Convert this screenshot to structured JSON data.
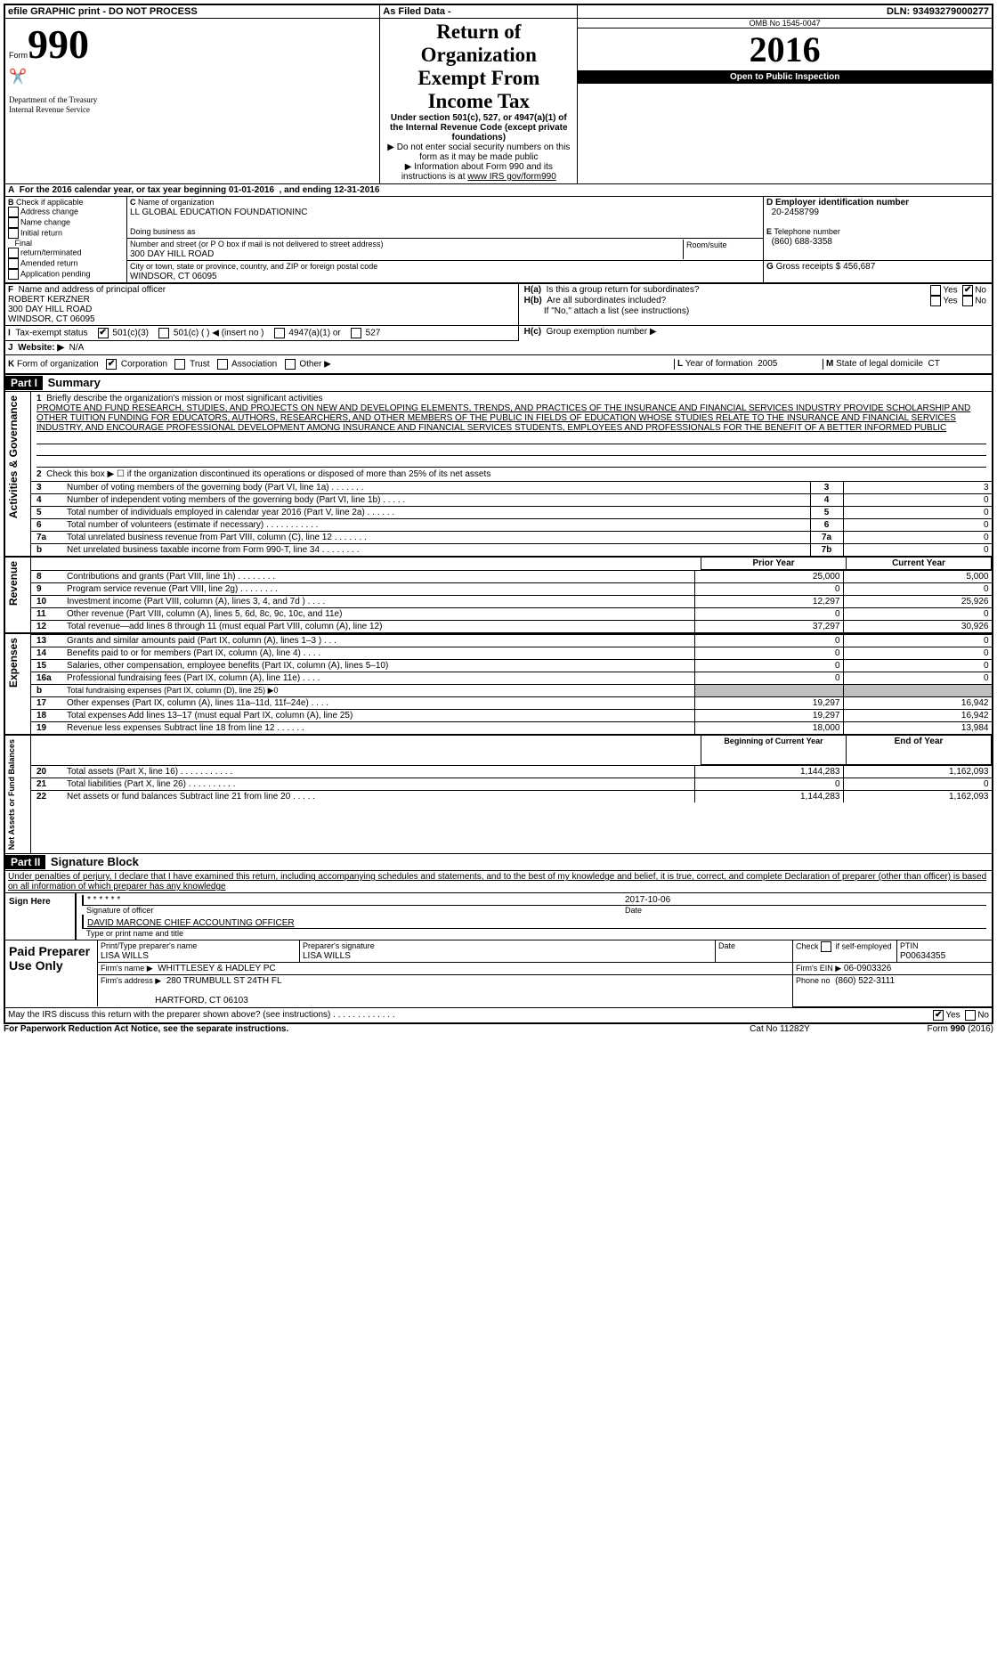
{
  "top": {
    "efile": "efile GRAPHIC print - DO NOT PROCESS",
    "asfiled": "As Filed Data -",
    "dln_lbl": "DLN:",
    "dln": "93493279000277"
  },
  "hdr": {
    "form": "Form",
    "num": "990",
    "dept": "Department of the Treasury\nInternal Revenue Service",
    "title": "Return of Organization Exempt From Income Tax",
    "sub1": "Under section 501(c), 527, or 4947(a)(1) of the Internal Revenue Code (except private foundations)",
    "sub2": "▶ Do not enter social security numbers on this form as it may be made public",
    "sub3": "▶ Information about Form 990 and its instructions is at ",
    "sub3link": "www IRS gov/form990",
    "omb": "OMB No  1545-0047",
    "year": "2016",
    "open": "Open to Public Inspection"
  },
  "A": {
    "txt1": "For the 2016 calendar year, or tax year beginning 01-01-2016",
    "txt2": ", and ending 12-31-2016"
  },
  "B": {
    "lbl": "Check if applicable",
    "c1": "Address change",
    "c2": "Name change",
    "c3": "Initial return",
    "c4": "Final return/terminated",
    "c5": "Amended return",
    "c6": "Application pending"
  },
  "C": {
    "name_lbl": "Name of organization",
    "name": "LL GLOBAL EDUCATION FOUNDATIONINC",
    "dba_lbl": "Doing business as",
    "addr_lbl": "Number and street (or P O  box if mail is not delivered to street address)",
    "room_lbl": "Room/suite",
    "addr": "300 DAY HILL ROAD",
    "city_lbl": "City or town, state or province, country, and ZIP or foreign postal code",
    "city": "WINDSOR, CT  06095"
  },
  "D": {
    "lbl": "Employer identification number",
    "val": "20-2458799"
  },
  "E": {
    "lbl": "Telephone number",
    "val": "(860) 688-3358"
  },
  "G": {
    "lbl": "Gross receipts $",
    "val": "456,687"
  },
  "F": {
    "lbl": "Name and address of principal officer",
    "v1": "ROBERT KERZNER",
    "v2": "300 DAY HILL ROAD",
    "v3": "WINDSOR, CT  06095"
  },
  "H": {
    "a": "Is this a group return for subordinates?",
    "b": "Are all subordinates included?",
    "bnote": "If \"No,\" attach a list  (see instructions)",
    "c": "Group exemption number ▶",
    "yes": "Yes",
    "no": "No"
  },
  "I": {
    "lbl": "Tax-exempt status",
    "o1": "501(c)(3)",
    "o2": "501(c) (    ) ◀ (insert no )",
    "o3": "4947(a)(1) or",
    "o4": "527"
  },
  "J": {
    "lbl": "Website: ▶",
    "val": "N/A"
  },
  "K": {
    "lbl": "Form of organization",
    "o1": "Corporation",
    "o2": "Trust",
    "o3": "Association",
    "o4": "Other ▶"
  },
  "L": {
    "lbl": "Year of formation",
    "val": "2005"
  },
  "M": {
    "lbl": "State of legal domicile",
    "val": "CT"
  },
  "part1": {
    "hdr": "Part I",
    "title": "Summary"
  },
  "sum": {
    "l1lbl": "Briefly describe the organization's mission or most significant activities",
    "l1": "PROMOTE AND FUND RESEARCH, STUDIES, AND PROJECTS ON NEW AND DEVELOPING ELEMENTS, TRENDS, AND PRACTICES OF THE INSURANCE AND FINANCIAL SERVICES INDUSTRY  PROVIDE SCHOLARSHIP AND OTHER TUITION FUNDING FOR EDUCATORS, AUTHORS, RESEARCHERS, AND OTHER MEMBERS OF THE PUBLIC IN FIELDS OF EDUCATION WHOSE STUDIES RELATE TO THE INSURANCE AND FINANCIAL SERVICES INDUSTRY, AND ENCOURAGE PROFESSIONAL DEVELOPMENT AMONG INSURANCE AND FINANCIAL SERVICES STUDENTS, EMPLOYEES AND PROFESSIONALS FOR THE BENEFIT OF A BETTER INFORMED PUBLIC",
    "l2": "Check this box ▶ ☐ if the organization discontinued its operations or disposed of more than 25% of its net assets",
    "rows_ag": [
      {
        "n": "3",
        "t": "Number of voting members of the governing body (Part VI, line 1a)   .    .    .    .    .    .    .",
        "b": "3",
        "v": "3"
      },
      {
        "n": "4",
        "t": "Number of independent voting members of the governing body (Part VI, line 1b)   .    .    .    .    .",
        "b": "4",
        "v": "0"
      },
      {
        "n": "5",
        "t": "Total number of individuals employed in calendar year 2016 (Part V, line 2a)   .    .    .    .    .    .",
        "b": "5",
        "v": "0"
      },
      {
        "n": "6",
        "t": "Total number of volunteers (estimate if necessary)   .    .    .    .    .    .    .    .    .    .    .",
        "b": "6",
        "v": "0"
      },
      {
        "n": "7a",
        "t": "Total unrelated business revenue from Part VIII, column (C), line 12   .    .    .    .    .    .    .",
        "b": "7a",
        "v": "0"
      },
      {
        "n": "b",
        "t": "Net unrelated business taxable income from Form 990-T, line 34   .    .    .    .    .    .    .    .",
        "b": "7b",
        "v": "0"
      }
    ],
    "py": "Prior Year",
    "cy": "Current Year",
    "rev": [
      {
        "n": "8",
        "t": "Contributions and grants (Part VIII, line 1h)   .    .    .    .    .    .    .    .",
        "p": "25,000",
        "c": "5,000"
      },
      {
        "n": "9",
        "t": "Program service revenue (Part VIII, line 2g)   .    .    .    .    .    .    .    .",
        "p": "0",
        "c": "0"
      },
      {
        "n": "10",
        "t": "Investment income (Part VIII, column (A), lines 3, 4, and 7d )   .    .    .    .",
        "p": "12,297",
        "c": "25,926"
      },
      {
        "n": "11",
        "t": "Other revenue (Part VIII, column (A), lines 5, 6d, 8c, 9c, 10c, and 11e)",
        "p": "0",
        "c": "0"
      },
      {
        "n": "12",
        "t": "Total revenue—add lines 8 through 11 (must equal Part VIII, column (A), line 12)",
        "p": "37,297",
        "c": "30,926"
      }
    ],
    "exp": [
      {
        "n": "13",
        "t": "Grants and similar amounts paid (Part IX, column (A), lines 1–3 )   .    .    .",
        "p": "0",
        "c": "0"
      },
      {
        "n": "14",
        "t": "Benefits paid to or for members (Part IX, column (A), line 4)   .    .    .    .",
        "p": "0",
        "c": "0"
      },
      {
        "n": "15",
        "t": "Salaries, other compensation, employee benefits (Part IX, column (A), lines 5–10)",
        "p": "0",
        "c": "0"
      },
      {
        "n": "16a",
        "t": "Professional fundraising fees (Part IX, column (A), line 11e)   .    .    .    .",
        "p": "0",
        "c": "0"
      },
      {
        "n": "b",
        "t": "Total fundraising expenses (Part IX, column (D), line 25) ▶0",
        "p": "",
        "c": ""
      },
      {
        "n": "17",
        "t": "Other expenses (Part IX, column (A), lines 11a–11d, 11f–24e)   .    .    .    .",
        "p": "19,297",
        "c": "16,942"
      },
      {
        "n": "18",
        "t": "Total expenses  Add lines 13–17 (must equal Part IX, column (A), line 25)",
        "p": "19,297",
        "c": "16,942"
      },
      {
        "n": "19",
        "t": "Revenue less expenses  Subtract line 18 from line 12   .    .    .    .    .    .",
        "p": "18,000",
        "c": "13,984"
      }
    ],
    "by": "Beginning of Current Year",
    "ey": "End of Year",
    "na": [
      {
        "n": "20",
        "t": "Total assets (Part X, line 16)   .    .    .    .    .    .    .    .    .    .    .",
        "p": "1,144,283",
        "c": "1,162,093"
      },
      {
        "n": "21",
        "t": "Total liabilities (Part X, line 26)   .    .    .    .    .    .    .    .    .    .",
        "p": "0",
        "c": "0"
      },
      {
        "n": "22",
        "t": "Net assets or fund balances  Subtract line 21 from line 20   .    .    .    .    .",
        "p": "1,144,283",
        "c": "1,162,093"
      }
    ],
    "side_ag": "Activities & Governance",
    "side_rev": "Revenue",
    "side_exp": "Expenses",
    "side_na": "Net Assets or Fund Balances"
  },
  "part2": {
    "hdr": "Part II",
    "title": "Signature Block"
  },
  "perjury": "Under penalties of perjury, I declare that I have examined this return, including accompanying schedules and statements, and to the best of my knowledge and belief, it is true, correct, and complete  Declaration of preparer (other than officer) is based on all information of which preparer has any knowledge",
  "sign": {
    "here": "Sign Here",
    "stars": "* * * * * *",
    "sig_lbl": "Signature of officer",
    "date": "2017-10-06",
    "date_lbl": "Date",
    "name": "DAVID MARCONE CHIEF ACCOUNTING OFFICER",
    "name_lbl": "Type or print name and title"
  },
  "paid": {
    "hdr": "Paid Preparer Use Only",
    "p1": "Print/Type preparer's name",
    "p1v": "LISA WILLS",
    "p2": "Preparer's signature",
    "p2v": "LISA WILLS",
    "p3": "Date",
    "p4a": "Check",
    "p4b": "if self-employed",
    "p5": "PTIN",
    "p5v": "P00634355",
    "f1": "Firm's name     ▶",
    "f1v": "WHITTLESEY & HADLEY PC",
    "f2": "Firm's EIN ▶",
    "f2v": "06-0903326",
    "f3": "Firm's address ▶",
    "f3v1": "280 TRUMBULL ST 24TH FL",
    "f3v2": "HARTFORD, CT  06103",
    "f4": "Phone no",
    "f4v": "(860) 522-3111"
  },
  "foot": {
    "q": "May the IRS discuss this return with the preparer shown above? (see instructions)   .    .    .    .    .    .    .    .    .    .    .    .    .",
    "yes": "Yes",
    "no": "No",
    "pra": "For Paperwork Reduction Act Notice, see the separate instructions.",
    "cat": "Cat No  11282Y",
    "form": "Form 990 (2016)"
  }
}
